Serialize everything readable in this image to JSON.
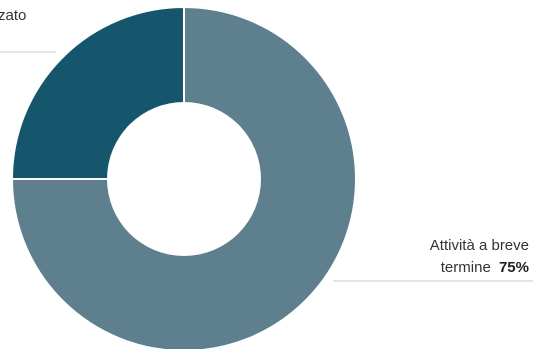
{
  "chart_data": {
    "type": "pie",
    "donut": true,
    "title": "",
    "slices": [
      {
        "label": "Attività a breve termine",
        "value": 75,
        "pct_text": "75%",
        "color": "#5e7f8e"
      },
      {
        "label": "…zato",
        "value": 25,
        "pct_text": "",
        "color": "#16566c"
      }
    ]
  },
  "labels": {
    "cut_off_label": "zato",
    "short_term_line1": "Attività a breve",
    "short_term_line2": "termine",
    "short_term_pct": "75%"
  }
}
